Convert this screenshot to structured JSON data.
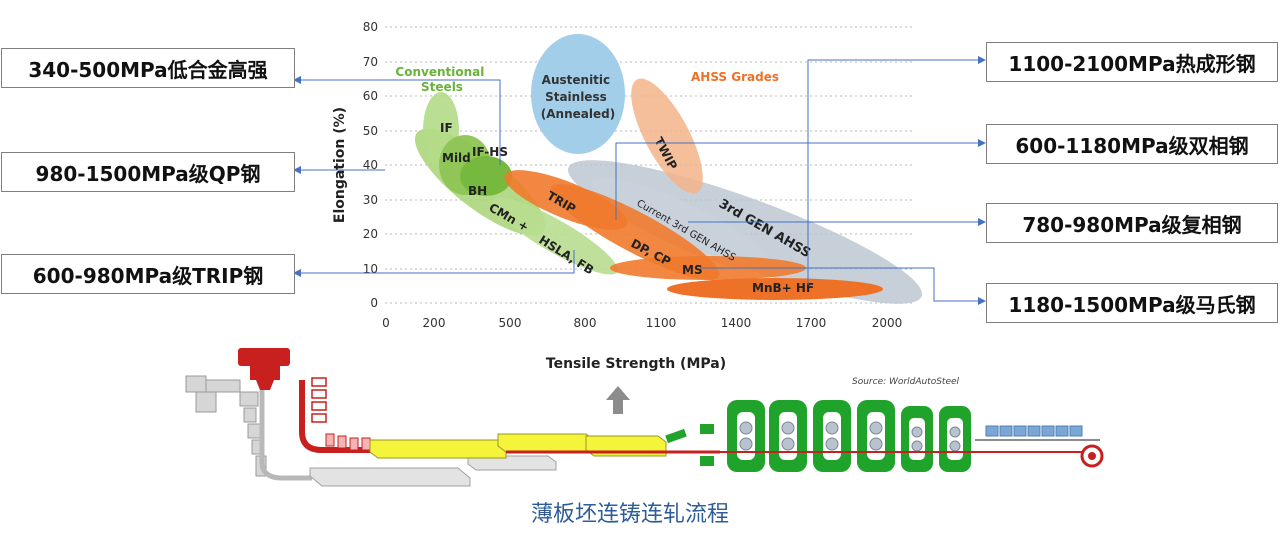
{
  "chart_data": {
    "type": "scatter",
    "xlabel": "Tensile Strength (MPa)",
    "ylabel": "Elongation (%)",
    "xlim": [
      0,
      2000
    ],
    "ylim": [
      0,
      80
    ],
    "x_ticks": [
      "0",
      "200",
      "500",
      "800",
      "1100",
      "1400",
      "1700",
      "2000"
    ],
    "y_ticks": [
      "0",
      "10",
      "20",
      "30",
      "40",
      "50",
      "60",
      "70",
      "80"
    ],
    "grid": "horizontal dotted",
    "source": "Source:  WorldAutoSteel",
    "group_labels": {
      "conventional": "Conventional Steels",
      "austenitic": "Austenitic Stainless (Annealed)",
      "ahss": "AHSS Grades"
    },
    "regions": [
      {
        "name": "IF",
        "group": "conventional"
      },
      {
        "name": "Mild",
        "group": "conventional"
      },
      {
        "name": "IF-HS",
        "group": "conventional"
      },
      {
        "name": "BH",
        "group": "conventional"
      },
      {
        "name": "CMn +",
        "group": "conventional"
      },
      {
        "name": "HSLA, FB",
        "group": "conventional"
      },
      {
        "name": "TRIP",
        "group": "ahss"
      },
      {
        "name": "DP, CP",
        "group": "ahss"
      },
      {
        "name": "MS",
        "group": "ahss"
      },
      {
        "name": "MnB+ HF",
        "group": "ahss"
      },
      {
        "name": "TWIP",
        "group": "ahss"
      },
      {
        "name": "Current 3rd GEN AHSS",
        "group": "ahss"
      },
      {
        "name": "3rd GEN AHSS",
        "group": "ahss"
      }
    ]
  },
  "callouts": {
    "hsla": "340-500MPa低合金高强",
    "qp": "980-1500MPa级QP钢",
    "trip": "600-980MPa级TRIP钢",
    "hf": "1100-2100MPa热成形钢",
    "dp": "600-1180MPa级双相钢",
    "cp": "780-980MPa级复相钢",
    "ms": "1180-1500MPa级马氏钢"
  },
  "caption": "薄板坯连铸连轧流程",
  "colors": {
    "conventional": "#92c45a",
    "ahss": "#f07a2c",
    "austenitic": "#9ecbe9",
    "gen3": "#b9c3cf",
    "twip": "#f5b48a",
    "callout_line": "#4472c4",
    "caption": "#2e5c9a",
    "mill_green": "#1fa32b",
    "slab_yellow": "#f4f43a",
    "ladle_red": "#c8201f"
  }
}
